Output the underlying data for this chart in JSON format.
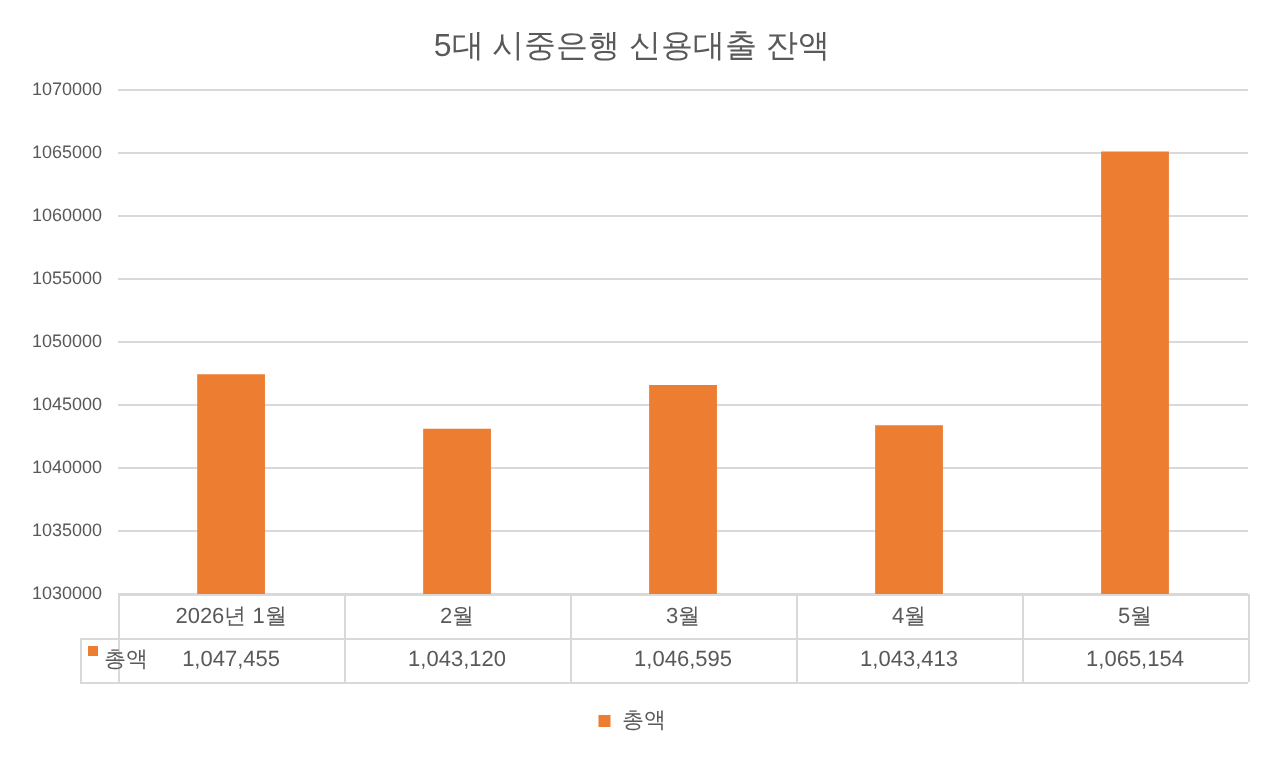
{
  "chart_data": {
    "type": "bar",
    "title": "5대 시중은행 신용대출 잔액",
    "categories": [
      "2026년 1월",
      "2월",
      "3월",
      "4월",
      "5월"
    ],
    "series": [
      {
        "name": "총액",
        "color": "#ed7d31",
        "values": [
          1047455,
          1043120,
          1046595,
          1043413,
          1065154
        ],
        "value_labels": [
          "1,047,455",
          "1,043,120",
          "1,046,595",
          "1,043,413",
          "1,065,154"
        ]
      }
    ],
    "ylim": [
      1030000,
      1070000
    ],
    "yticks": [
      1030000,
      1035000,
      1040000,
      1045000,
      1050000,
      1055000,
      1060000,
      1065000,
      1070000
    ],
    "grid": "y",
    "legend": "bottom"
  }
}
